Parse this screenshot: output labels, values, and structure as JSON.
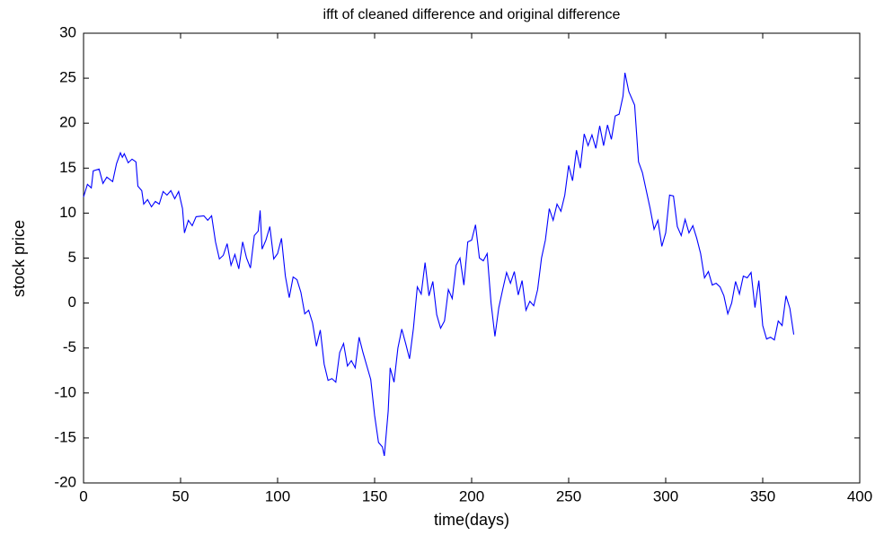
{
  "chart_data": {
    "type": "line",
    "title": "ifft of cleaned difference and original difference",
    "xlabel": "time(days)",
    "ylabel": "stock price",
    "xlim": [
      0,
      400
    ],
    "xticks": [
      0,
      50,
      100,
      150,
      200,
      250,
      300,
      350,
      400
    ],
    "ylim": [
      -20,
      30
    ],
    "yticks": [
      -20,
      -15,
      -10,
      -5,
      0,
      5,
      10,
      15,
      20,
      25,
      30
    ],
    "grid": false,
    "series": [
      {
        "name": "stock price",
        "color": "#0000ff",
        "x": [
          0,
          2,
          4,
          5,
          8,
          10,
          12,
          15,
          17,
          19,
          20,
          21,
          23,
          25,
          27,
          28,
          30,
          31,
          33,
          35,
          37,
          39,
          41,
          43,
          45,
          47,
          49,
          51,
          52,
          54,
          56,
          58,
          62,
          64,
          66,
          68,
          70,
          72,
          74,
          76,
          78,
          80,
          82,
          84,
          86,
          88,
          90,
          91,
          92,
          94,
          96,
          98,
          100,
          102,
          104,
          106,
          108,
          110,
          112,
          114,
          116,
          118,
          120,
          122,
          124,
          126,
          128,
          130,
          132,
          134,
          136,
          138,
          140,
          142,
          144,
          146,
          148,
          150,
          152,
          154,
          155,
          157,
          158,
          160,
          162,
          164,
          166,
          168,
          170,
          172,
          174,
          176,
          178,
          180,
          182,
          184,
          186,
          188,
          190,
          192,
          194,
          196,
          198,
          200,
          202,
          204,
          206,
          208,
          210,
          212,
          214,
          216,
          218,
          220,
          222,
          224,
          226,
          228,
          230,
          232,
          234,
          236,
          238,
          240,
          242,
          244,
          246,
          248,
          250,
          252,
          254,
          256,
          258,
          260,
          262,
          264,
          266,
          268,
          270,
          272,
          274,
          276,
          278,
          279,
          281,
          284,
          286,
          288,
          290,
          292,
          294,
          296,
          298,
          300,
          302,
          304,
          306,
          308,
          310,
          312,
          314,
          316,
          318,
          320,
          322,
          324,
          326,
          328,
          330,
          332,
          334,
          336,
          338,
          340,
          342,
          344,
          346,
          348,
          350,
          352,
          354,
          356,
          358,
          360,
          362,
          364,
          366
        ],
        "values": [
          11.8,
          13.2,
          12.8,
          14.7,
          14.9,
          13.3,
          14.0,
          13.5,
          15.5,
          16.7,
          16.2,
          16.6,
          15.6,
          16.0,
          15.7,
          13.0,
          12.5,
          11.0,
          11.5,
          10.7,
          11.3,
          11.0,
          12.4,
          12.0,
          12.5,
          11.6,
          12.4,
          10.5,
          7.8,
          9.2,
          8.6,
          9.6,
          9.7,
          9.2,
          9.7,
          6.8,
          4.9,
          5.3,
          6.6,
          4.2,
          5.4,
          3.8,
          6.8,
          5.0,
          3.9,
          7.5,
          8.0,
          10.3,
          6.0,
          7.0,
          8.5,
          4.9,
          5.5,
          7.2,
          3.0,
          0.6,
          2.9,
          2.6,
          1.2,
          -1.2,
          -0.8,
          -2.2,
          -4.8,
          -3.0,
          -6.8,
          -8.6,
          -8.4,
          -8.8,
          -5.5,
          -4.5,
          -7.0,
          -6.4,
          -7.2,
          -3.8,
          -5.5,
          -7.0,
          -8.5,
          -12.5,
          -15.5,
          -16.0,
          -17.0,
          -12.0,
          -7.2,
          -8.8,
          -5.0,
          -2.9,
          -4.5,
          -6.2,
          -2.8,
          1.8,
          1.0,
          4.5,
          0.8,
          2.4,
          -1.3,
          -2.8,
          -2.0,
          1.5,
          0.5,
          4.2,
          5.0,
          2.0,
          6.8,
          7.0,
          8.7,
          5.0,
          4.7,
          5.5,
          0.0,
          -3.7,
          -0.5,
          1.5,
          3.4,
          2.2,
          3.5,
          0.9,
          2.5,
          -0.8,
          0.2,
          -0.3,
          1.5,
          5.0,
          7.0,
          10.5,
          9.2,
          11.0,
          10.2,
          12.0,
          15.3,
          13.6,
          17.0,
          15.0,
          18.8,
          17.5,
          18.7,
          17.2,
          19.7,
          17.5,
          19.8,
          18.2,
          20.8,
          21.0,
          23.0,
          25.6,
          23.5,
          22.0,
          15.7,
          14.5,
          12.5,
          10.5,
          8.2,
          9.2,
          6.3,
          7.8,
          12.0,
          11.9,
          8.5,
          7.5,
          9.3,
          7.8,
          8.6,
          7.2,
          5.5,
          2.8,
          3.5,
          2.0,
          2.2,
          1.8,
          0.8,
          -1.2,
          0.0,
          2.4,
          1.0,
          3.0,
          2.8,
          3.4,
          -0.5,
          2.5,
          -2.5,
          -4.0,
          -3.8,
          -4.1,
          -2.0,
          -2.5,
          0.8,
          -0.6,
          -3.5
        ]
      }
    ]
  }
}
